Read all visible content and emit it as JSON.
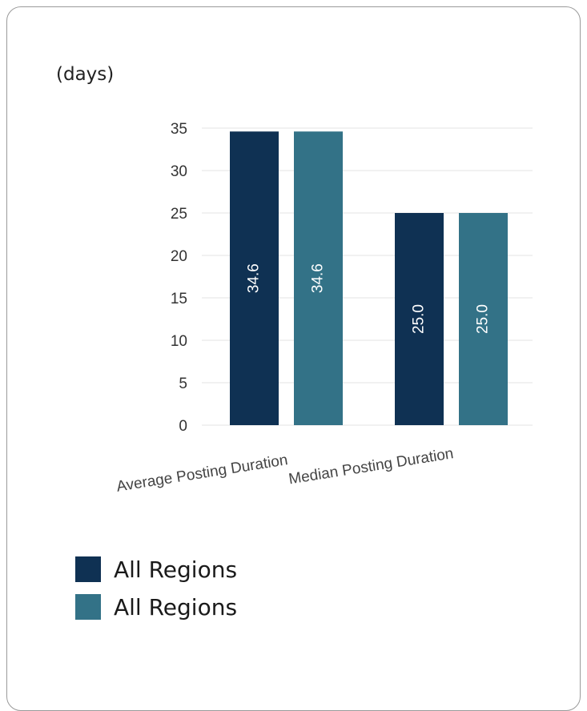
{
  "unit_label": "(days)",
  "chart_data": {
    "type": "bar",
    "categories": [
      "Average Posting Duration",
      "Median Posting Duration"
    ],
    "series": [
      {
        "name": "All Regions",
        "color": "#0f3153",
        "values": [
          34.6,
          25.0
        ],
        "labels": [
          "34.6",
          "25.0"
        ]
      },
      {
        "name": "All Regions",
        "color": "#337287",
        "values": [
          34.6,
          25.0
        ],
        "labels": [
          "34.6",
          "25.0"
        ]
      }
    ],
    "ylim": [
      0,
      35
    ],
    "yticks": [
      0,
      5,
      10,
      15,
      20,
      25,
      30,
      35
    ],
    "grid": true,
    "legend_position": "bottom-left"
  },
  "legend": [
    {
      "label": "All Regions",
      "color": "#0f3153"
    },
    {
      "label": "All Regions",
      "color": "#337287"
    }
  ]
}
